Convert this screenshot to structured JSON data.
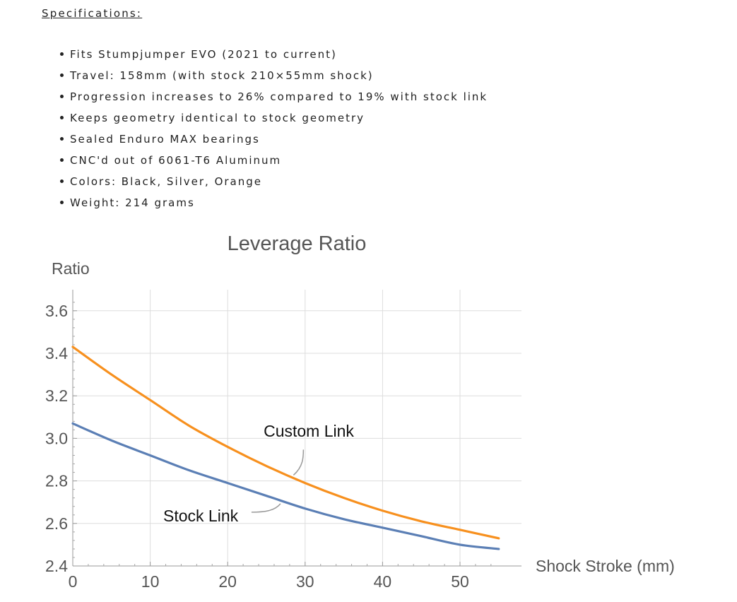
{
  "specs": {
    "heading": "Specifications:",
    "items": [
      "Fits Stumpjumper EVO (2021 to current)",
      "Travel: 158mm (with stock 210×55mm shock)",
      "Progression increases to 26% compared to 19% with stock link",
      "Keeps geometry identical to stock geometry",
      "Sealed Enduro MAX bearings",
      "CNC'd out of 6061-T6 Aluminum",
      "Colors: Black, Silver, Orange",
      "Weight: 214 grams"
    ]
  },
  "colors": {
    "custom": "#f7901e",
    "stock": "#5b7fb5",
    "grid": "#dddddd",
    "text": "#222222"
  },
  "chart_data": {
    "type": "line",
    "title": "Leverage Ratio",
    "xlabel": "Shock Stroke (mm)",
    "ylabel": "Ratio",
    "xlim": [
      0,
      55
    ],
    "ylim": [
      2.4,
      3.6
    ],
    "x_ticks": [
      0,
      10,
      20,
      30,
      40,
      50
    ],
    "x_tick_labels": [
      "0",
      "10",
      "20",
      "30",
      "40",
      "50"
    ],
    "y_ticks": [
      2.4,
      2.6,
      2.8,
      3.0,
      3.2,
      3.4,
      3.6
    ],
    "y_tick_labels": [
      "2.4",
      "2.6",
      "2.8",
      "3.0",
      "3.2",
      "3.4",
      "3.6"
    ],
    "grid": true,
    "legend": "none",
    "series": [
      {
        "name": "Custom Link",
        "color": "#f7901e",
        "x": [
          0,
          5,
          10,
          15,
          20,
          25,
          30,
          35,
          40,
          45,
          50,
          55
        ],
        "y": [
          3.43,
          3.3,
          3.18,
          3.06,
          2.96,
          2.87,
          2.79,
          2.72,
          2.66,
          2.61,
          2.57,
          2.53
        ]
      },
      {
        "name": "Stock Link",
        "color": "#5b7fb5",
        "x": [
          0,
          5,
          10,
          15,
          20,
          25,
          30,
          35,
          40,
          45,
          50,
          55
        ],
        "y": [
          3.07,
          2.99,
          2.92,
          2.85,
          2.79,
          2.73,
          2.67,
          2.62,
          2.58,
          2.54,
          2.5,
          2.48
        ]
      }
    ],
    "annotations": [
      {
        "text": "Custom Link",
        "series": "Custom Link",
        "at_x": 28.5
      },
      {
        "text": "Stock Link",
        "series": "Stock Link",
        "at_x": 27
      }
    ]
  }
}
